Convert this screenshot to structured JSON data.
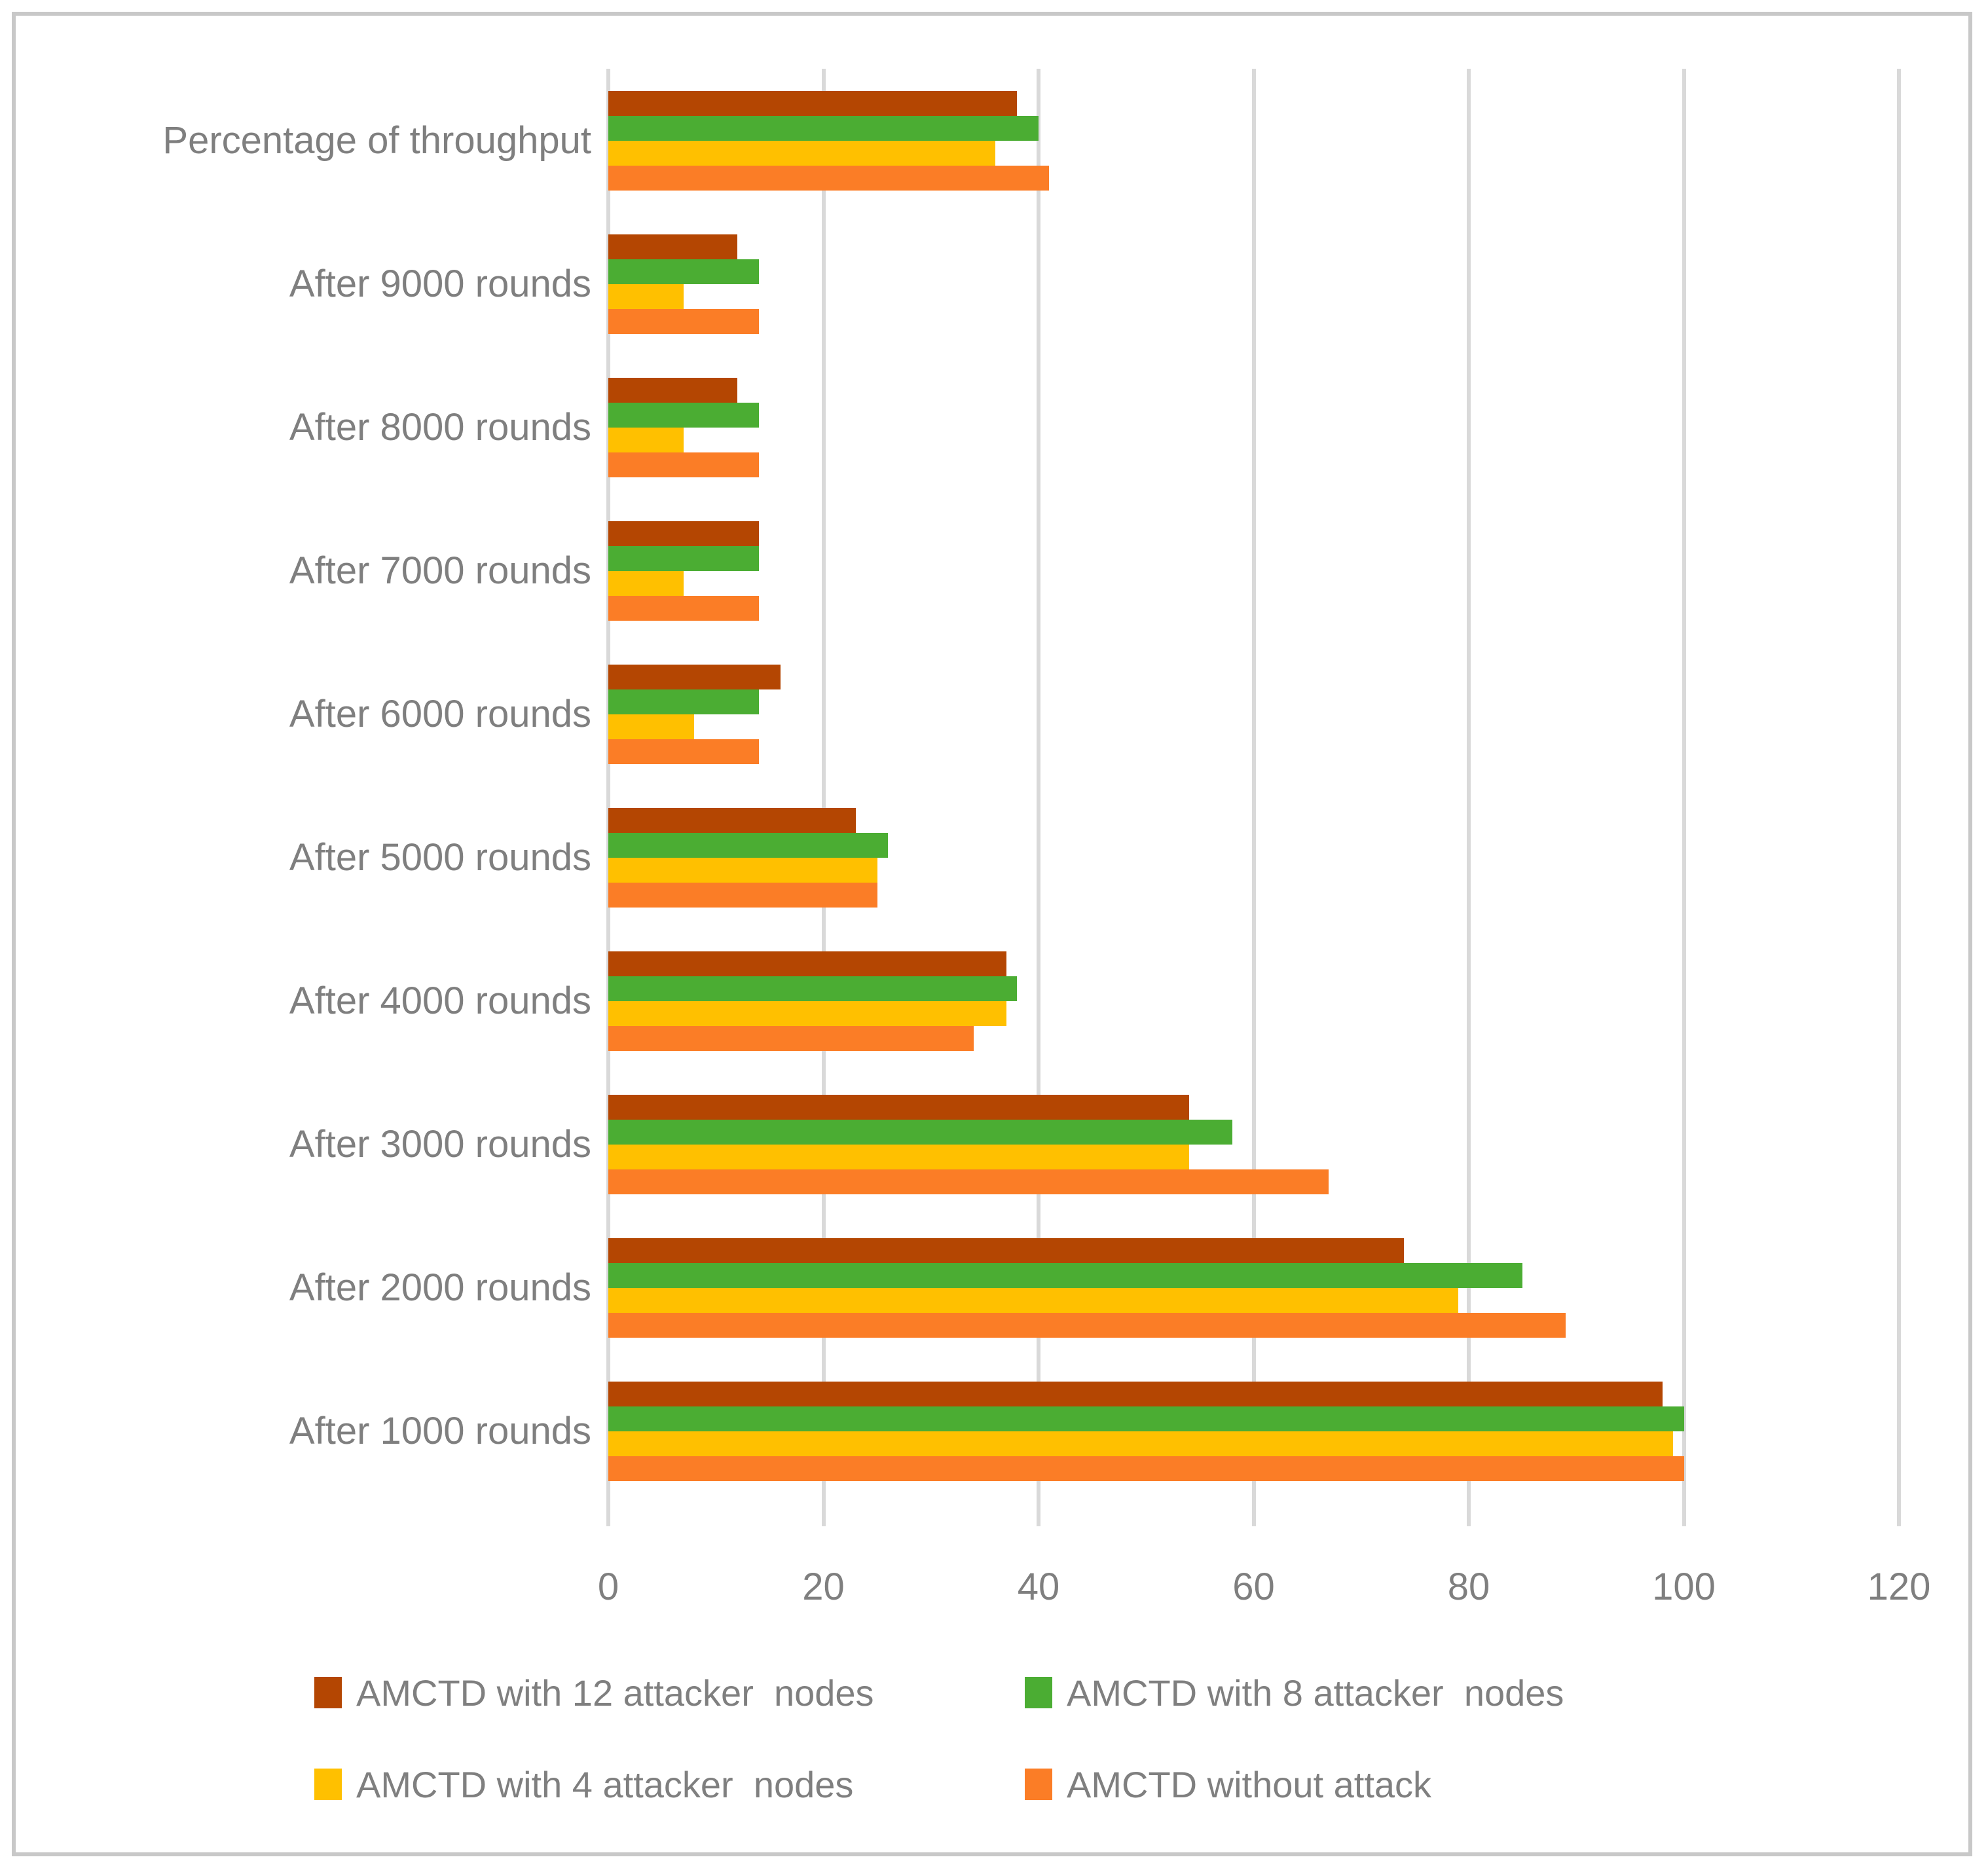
{
  "chart_data": {
    "type": "bar",
    "orientation": "horizontal",
    "title": "",
    "categories": [
      "Percentage of throughput",
      "After 9000 rounds",
      "After 8000 rounds",
      "After 7000 rounds",
      "After 6000 rounds",
      "After 5000 rounds",
      "After 4000 rounds",
      "After 3000 rounds",
      "After 2000 rounds",
      "After 1000 rounds"
    ],
    "series": [
      {
        "name": "AMCTD with 12 attacker  nodes",
        "color": "#B44602",
        "values": [
          38,
          12,
          12,
          14,
          16,
          23,
          37,
          54,
          74,
          98
        ]
      },
      {
        "name": "AMCTD with 8 attacker  nodes",
        "color": "#4BAD33",
        "values": [
          40,
          14,
          14,
          14,
          14,
          26,
          38,
          58,
          85,
          100
        ]
      },
      {
        "name": "AMCTD with 4 attacker  nodes",
        "color": "#FFC000",
        "values": [
          36,
          7,
          7,
          7,
          8,
          25,
          37,
          54,
          79,
          99
        ]
      },
      {
        "name": "AMCTD without attack",
        "color": "#FB7D26",
        "values": [
          41,
          14,
          14,
          14,
          14,
          25,
          34,
          67,
          89,
          100
        ]
      }
    ],
    "x_axis": {
      "min": 0,
      "max": 120,
      "tick_interval": 20,
      "tick_labels": [
        "0",
        "20",
        "40",
        "60",
        "80",
        "100",
        "120"
      ]
    },
    "grid": "vertical-gridlines",
    "legend_position": "bottom"
  },
  "styles": {
    "text_color": "#7F7F7F",
    "gridline_color": "#D9D9D9",
    "frame_border_color": "#C8C8C8",
    "background": "#FFFFFF"
  }
}
